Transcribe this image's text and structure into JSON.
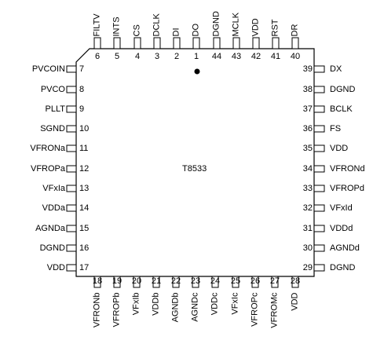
{
  "part_number": "T8533",
  "top_pins": [
    {
      "num": "6",
      "name": "FILTV"
    },
    {
      "num": "5",
      "name": "INTS"
    },
    {
      "num": "4",
      "name": "CS"
    },
    {
      "num": "3",
      "name": "DCLK"
    },
    {
      "num": "2",
      "name": "DI"
    },
    {
      "num": "1",
      "name": "DO"
    },
    {
      "num": "44",
      "name": "DGND"
    },
    {
      "num": "43",
      "name": "MCLK"
    },
    {
      "num": "42",
      "name": "VDD"
    },
    {
      "num": "41",
      "name": "RST"
    },
    {
      "num": "40",
      "name": "DR"
    }
  ],
  "left_pins": [
    {
      "num": "7",
      "name": "PVCOIN"
    },
    {
      "num": "8",
      "name": "PVCO"
    },
    {
      "num": "9",
      "name": "PLLT"
    },
    {
      "num": "10",
      "name": "SGND"
    },
    {
      "num": "11",
      "name": "VFRONa"
    },
    {
      "num": "12",
      "name": "VFROPa"
    },
    {
      "num": "13",
      "name": "VFxIa"
    },
    {
      "num": "14",
      "name": "VDDa"
    },
    {
      "num": "15",
      "name": "AGNDa"
    },
    {
      "num": "16",
      "name": "DGND"
    },
    {
      "num": "17",
      "name": "VDD"
    }
  ],
  "right_pins": [
    {
      "num": "39",
      "name": "DX"
    },
    {
      "num": "38",
      "name": "DGND"
    },
    {
      "num": "37",
      "name": "BCLK"
    },
    {
      "num": "36",
      "name": "FS"
    },
    {
      "num": "35",
      "name": "VDD"
    },
    {
      "num": "34",
      "name": "VFRONd"
    },
    {
      "num": "33",
      "name": "VFROPd"
    },
    {
      "num": "32",
      "name": "VFxId"
    },
    {
      "num": "31",
      "name": "VDDd"
    },
    {
      "num": "30",
      "name": "AGNDd"
    },
    {
      "num": "29",
      "name": "DGND"
    }
  ],
  "bottom_pins": [
    {
      "num": "18",
      "name": "VFRONb"
    },
    {
      "num": "19",
      "name": "VFROPb"
    },
    {
      "num": "20",
      "name": "VFxIb"
    },
    {
      "num": "21",
      "name": "VDDb"
    },
    {
      "num": "22",
      "name": "AGNDb"
    },
    {
      "num": "23",
      "name": "AGNDc"
    },
    {
      "num": "24",
      "name": "VDDc"
    },
    {
      "num": "25",
      "name": "VFxIc"
    },
    {
      "num": "26",
      "name": "VFROPc"
    },
    {
      "num": "27",
      "name": "VFROMc"
    },
    {
      "num": "28",
      "name": "VDD"
    }
  ]
}
